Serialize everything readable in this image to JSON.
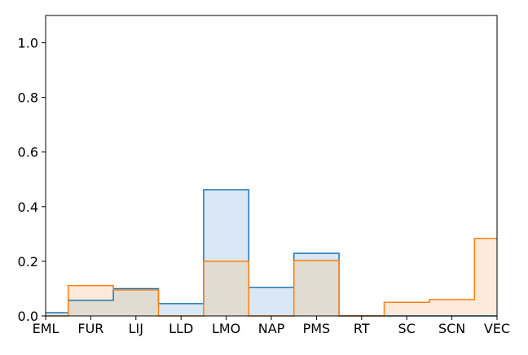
{
  "chart_data": {
    "type": "area",
    "step": "mid",
    "categories": [
      "EML",
      "FUR",
      "LIJ",
      "LLD",
      "LMO",
      "NAP",
      "PMS",
      "RT",
      "SC",
      "SCN",
      "VEC"
    ],
    "ylim": [
      0,
      1.1
    ],
    "yticks": [
      0.0,
      0.2,
      0.4,
      0.6,
      0.8,
      1.0
    ],
    "ytick_labels": [
      "0.0",
      "0.2",
      "0.4",
      "0.6",
      "0.8",
      "1.0"
    ],
    "grid": false,
    "title": "",
    "xlabel": "",
    "ylabel": "",
    "series": [
      {
        "values": [
          0.012,
          0.057,
          0.1,
          0.045,
          0.462,
          0.104,
          0.229,
          0.0,
          0.0,
          0.0,
          0.0
        ],
        "line_color": "#1f77b4",
        "fill_color": "#dae7f4"
      },
      {
        "values": [
          0.0,
          0.111,
          0.095,
          0.0,
          0.2,
          0.0,
          0.203,
          0.0,
          0.05,
          0.06,
          0.284
        ],
        "line_color": "#ff7f0e",
        "fill_color": "#feead9"
      }
    ],
    "overlap_fill_color": "#e0dcd2"
  }
}
